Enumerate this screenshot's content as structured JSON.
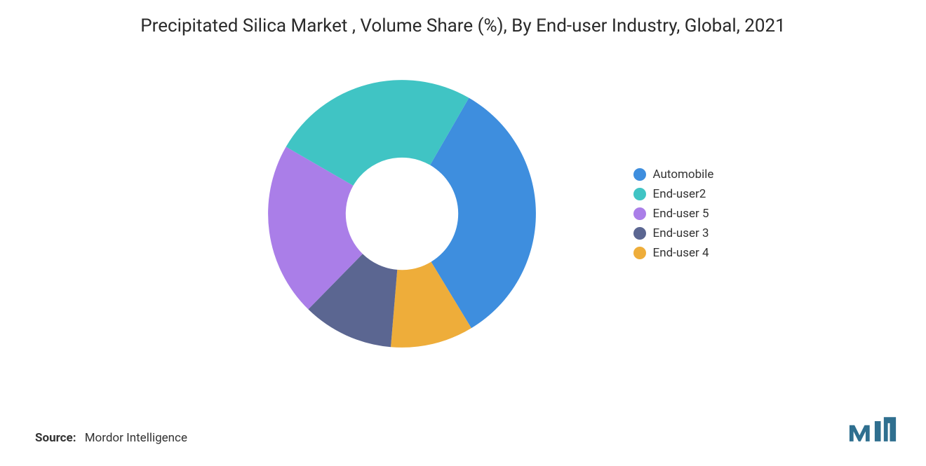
{
  "chart": {
    "type": "donut",
    "title": "Precipitated Silica Market , Volume Share (%), By End-user Industry, Global, 2021",
    "title_fontsize": 26,
    "title_color": "#2a2a2a",
    "background_color": "#ffffff",
    "inner_radius_ratio": 0.42,
    "start_angle_deg": -60,
    "slices": [
      {
        "label": "Automobile",
        "value": 33,
        "color": "#3e8ede"
      },
      {
        "label": "End-user 4",
        "value": 10,
        "color": "#eead3a"
      },
      {
        "label": "End-user 3",
        "value": 11,
        "color": "#5b6691"
      },
      {
        "label": "End-user 5",
        "value": 21,
        "color": "#aa7ee8"
      },
      {
        "label": "End-user2",
        "value": 25,
        "color": "#40c4c4"
      }
    ],
    "legend_order": [
      0,
      4,
      3,
      2,
      1
    ],
    "legend_fontsize": 17,
    "legend_text_color": "#333333"
  },
  "source": {
    "label": "Source:",
    "text": "Mordor Intelligence"
  },
  "logo": {
    "name": "mordor-intelligence-logo",
    "fill": "#2f6f8f"
  }
}
